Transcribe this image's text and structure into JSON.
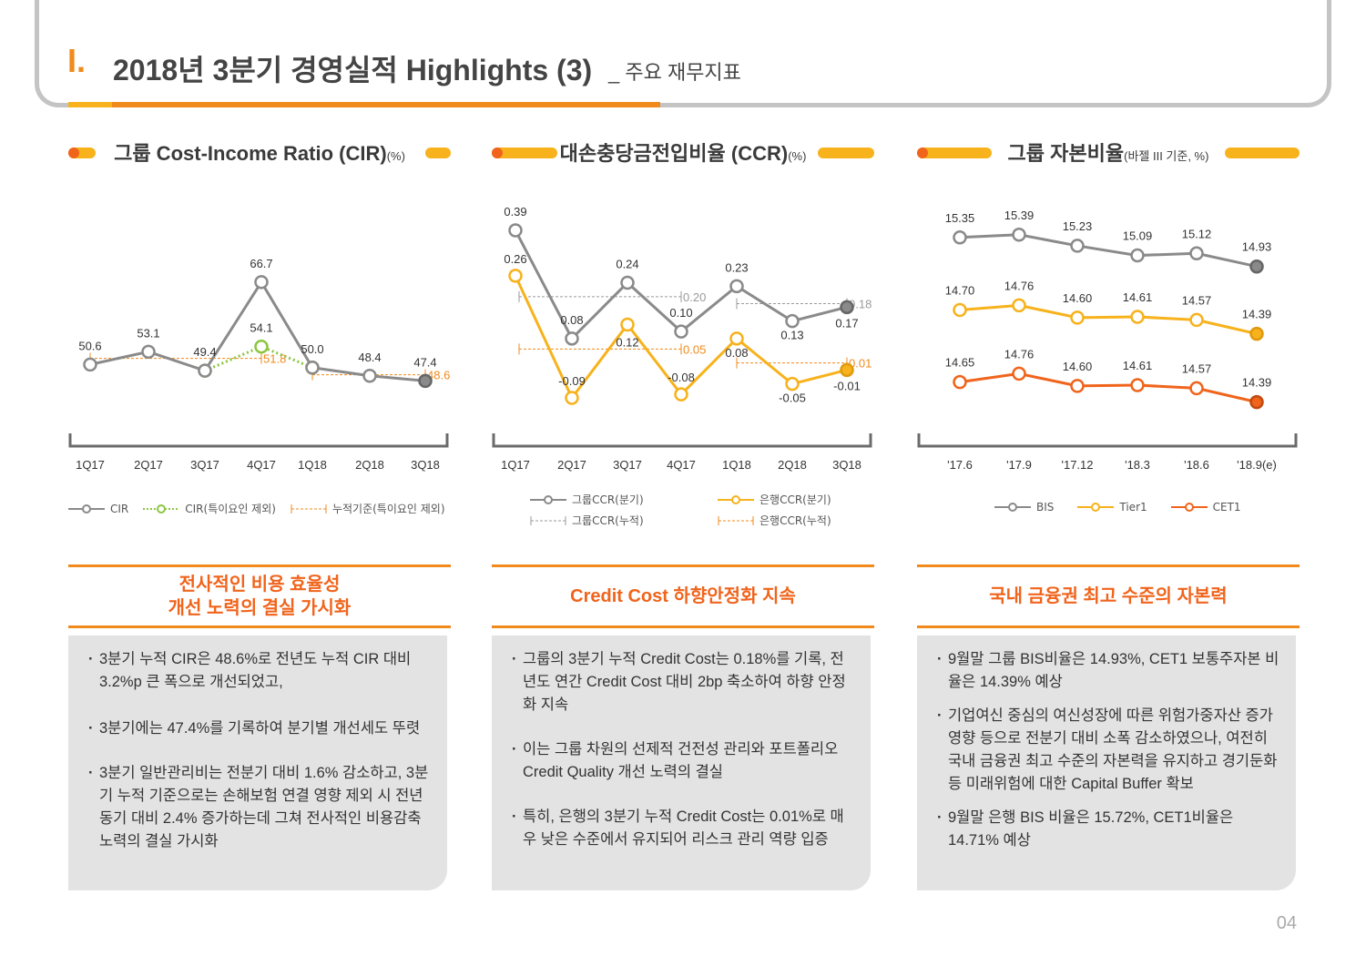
{
  "header": {
    "number": "I.",
    "title": "2018년 3분기 경영실적 Highlights (3)",
    "subtitle": "_ 주요 재무지표"
  },
  "page_number": "04",
  "panels": [
    {
      "title": "그룹 Cost-Income Ratio (CIR)",
      "unit": "(%)",
      "legend": [
        "CIR",
        "CIR(특이요인 제외)",
        "누적기준(특이요인 제외)"
      ],
      "subhead": "전사적인 비용 효율성\n개선 노력의 결실 가시화",
      "bullets": [
        "3분기 누적 CIR은 48.6%로 전년도 누적 CIR 대비 3.2%p 큰 폭으로 개선되었고,",
        "3분기에는 47.4%를 기록하여 분기별 개선세도 뚜렷",
        "3분기 일반관리비는 전분기 대비 1.6% 감소하고, 3분기 누적 기준으로는 손해보험 연결 영향 제외 시 전년동기 대비 2.4% 증가하는데 그쳐 전사적인 비용감축 노력의 결실 가시화"
      ]
    },
    {
      "title": "대손충당금전입비율 (CCR)",
      "unit": "(%)",
      "legend": [
        "그룹CCR(분기)",
        "은행CCR(분기)",
        "그룹CCR(누적)",
        "은행CCR(누적)"
      ],
      "subhead": "Credit Cost 하향안정화 지속",
      "bullets": [
        "그룹의 3분기 누적 Credit Cost는 0.18%를 기록, 전년도 연간 Credit Cost 대비 2bp 축소하여 하향 안정화 지속",
        "이는 그룹 차원의 선제적 건전성 관리와 포트폴리오 Credit Quality 개선 노력의 결실",
        "특히, 은행의 3분기 누적 Credit Cost는 0.01%로 매우 낮은 수준에서 유지되어 리스크 관리 역량 입증"
      ]
    },
    {
      "title": "그룹 자본비율",
      "unit": "(바젤 III 기준, %)",
      "legend": [
        "BIS",
        "Tier1",
        "CET1"
      ],
      "subhead": "국내 금융권 최고 수준의 자본력",
      "bullets": [
        "9월말 그룹 BIS비율은 14.93%, CET1 보통주자본 비율은 14.39% 예상",
        "기업여신 중심의 여신성장에 따른 위험가중자산 증가 영향 등으로 전분기 대비 소폭 감소하였으나, 여전히 국내 금융권 최고 수준의 자본력을 유지하고 경기둔화 등 미래위험에 대한 Capital Buffer 확보",
        "9월말 은행 BIS 비율은 15.72%, CET1비율은 14.71% 예상"
      ]
    }
  ],
  "chart_data": [
    {
      "type": "line",
      "title": "그룹 Cost-Income Ratio (CIR)",
      "unit": "(%)",
      "categories": [
        "1Q17",
        "2Q17",
        "3Q17",
        "4Q17",
        "1Q18",
        "2Q18",
        "3Q18"
      ],
      "ylim": [
        40,
        72
      ],
      "series": [
        {
          "name": "CIR",
          "values": [
            50.6,
            53.1,
            49.4,
            66.7,
            50.0,
            48.4,
            47.4
          ],
          "labels": [
            "50.6",
            "53.1",
            "49.4",
            "66.7",
            "50.0",
            "48.4",
            "47.4"
          ],
          "color": "#8a8a8a"
        },
        {
          "name": "CIR(특이요인 제외)",
          "values": [
            null,
            null,
            49.4,
            54.1,
            50.0,
            null,
            null
          ],
          "labels": [
            "",
            "",
            "",
            "54.1",
            "",
            "",
            ""
          ],
          "color": "#8cc63f",
          "dashed": true
        },
        {
          "name": "누적기준(특이요인 제외)",
          "values": [
            null,
            null,
            null,
            51.8,
            null,
            null,
            48.6
          ],
          "labels": [
            "",
            "",
            "",
            "51.8",
            "",
            "",
            "48.6"
          ],
          "color": "#f08a1c",
          "reference": true
        }
      ]
    },
    {
      "type": "line",
      "title": "대손충당금전입비율 (CCR)",
      "unit": "(%)",
      "categories": [
        "1Q17",
        "2Q17",
        "3Q17",
        "4Q17",
        "1Q18",
        "2Q18",
        "3Q18"
      ],
      "ylim": [
        -0.15,
        0.45
      ],
      "series": [
        {
          "name": "그룹CCR(분기)",
          "values": [
            0.39,
            0.08,
            0.24,
            0.1,
            0.23,
            0.13,
            0.17
          ],
          "labels": [
            "0.39",
            "0.08",
            "0.24",
            "0.10",
            "0.23",
            "0.13",
            "0.17"
          ],
          "color": "#8a8a8a"
        },
        {
          "name": "은행CCR(분기)",
          "values": [
            0.26,
            -0.09,
            0.12,
            -0.08,
            0.08,
            -0.05,
            -0.01
          ],
          "labels": [
            "0.26",
            "-0.09",
            "0.12",
            "-0.08",
            "0.08",
            "-0.05",
            "-0.01"
          ],
          "color": "#f7b21c"
        },
        {
          "name": "그룹CCR(누적)",
          "values": [
            null,
            null,
            null,
            0.2,
            null,
            null,
            0.18
          ],
          "labels": [
            "",
            "",
            "",
            "0.20",
            "",
            "",
            "0.18"
          ],
          "color": "#9a9a9a",
          "reference": true
        },
        {
          "name": "은행CCR(누적)",
          "values": [
            null,
            null,
            null,
            0.05,
            null,
            null,
            0.01
          ],
          "labels": [
            "",
            "",
            "",
            "0.05",
            "",
            "",
            "0.01"
          ],
          "color": "#f08a1c",
          "reference": true
        }
      ]
    },
    {
      "type": "line",
      "title": "그룹 자본비율",
      "unit": "(바젤 III 기준, %)",
      "categories": [
        "'17.6",
        "'17.9",
        "'17.12",
        "'18.3",
        "'18.6",
        "'18.9(e)"
      ],
      "series": [
        {
          "name": "BIS",
          "values": [
            15.35,
            15.39,
            15.23,
            15.09,
            15.12,
            14.93
          ],
          "labels": [
            "15.35",
            "15.39",
            "15.23",
            "15.09",
            "15.12",
            "14.93"
          ],
          "color": "#8a8a8a"
        },
        {
          "name": "Tier1",
          "values": [
            14.7,
            14.76,
            14.6,
            14.61,
            14.57,
            14.39
          ],
          "labels": [
            "14.70",
            "14.76",
            "14.60",
            "14.61",
            "14.57",
            "14.39"
          ],
          "color": "#f7b21c"
        },
        {
          "name": "CET1",
          "values": [
            14.65,
            14.76,
            14.6,
            14.61,
            14.57,
            14.39
          ],
          "labels": [
            "14.65",
            "14.76",
            "14.60",
            "14.61",
            "14.57",
            "14.39"
          ],
          "color": "#f0641c"
        }
      ]
    }
  ]
}
